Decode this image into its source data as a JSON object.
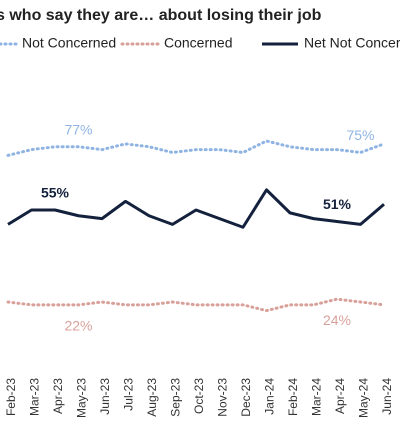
{
  "chart_data": {
    "type": "line",
    "title": "s who say they are… about losing their job",
    "categories": [
      "Feb-23",
      "Mar-23",
      "Apr-23",
      "May-23",
      "Jun-23",
      "Jul-23",
      "Aug-23",
      "Sep-23",
      "Oct-23",
      "Nov-23",
      "Dec-23",
      "Jan-24",
      "Feb-24",
      "Mar-24",
      "Apr-24",
      "May-24",
      "Jun-24"
    ],
    "series": [
      {
        "name": "Not Concerned",
        "color": "#8fb4e3",
        "dash": "dotted",
        "values": [
          74,
          76,
          77,
          77,
          76,
          78,
          77,
          75,
          76,
          76,
          75,
          79,
          77,
          76,
          76,
          75,
          78
        ],
        "value_labels": [
          null,
          null,
          null,
          "77%",
          null,
          null,
          null,
          null,
          null,
          null,
          null,
          null,
          null,
          null,
          null,
          "75%",
          null
        ]
      },
      {
        "name": "Concerned",
        "color": "#d9a09a",
        "dash": "dotted",
        "values": [
          23,
          22,
          22,
          22,
          23,
          22,
          22,
          23,
          22,
          22,
          22,
          20,
          22,
          22,
          24,
          23,
          22
        ],
        "value_labels": [
          null,
          null,
          null,
          "22%",
          null,
          null,
          null,
          null,
          null,
          null,
          null,
          null,
          null,
          null,
          "24%",
          null,
          null
        ]
      },
      {
        "name": "Net Not Concerned",
        "color": "#14213d",
        "dash": "solid",
        "values": [
          50,
          55,
          55,
          53,
          52,
          58,
          53,
          50,
          55,
          52,
          49,
          62,
          54,
          52,
          51,
          50,
          57
        ],
        "value_labels": [
          null,
          null,
          "55%",
          null,
          null,
          null,
          null,
          null,
          null,
          null,
          null,
          null,
          null,
          null,
          "51%",
          null,
          null
        ]
      }
    ],
    "ylim": [
      15,
      95
    ]
  }
}
